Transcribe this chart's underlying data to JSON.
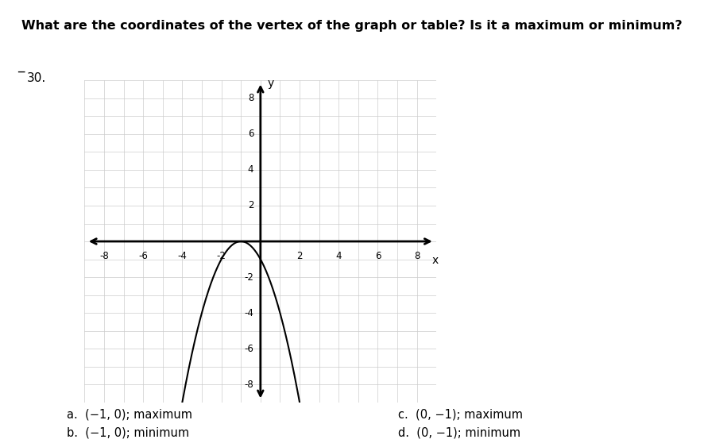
{
  "title": "What are the coordinates of the vertex of the graph or table? Is it a maximum or minimum?",
  "question_number": "30.",
  "xlim": [
    -9,
    9
  ],
  "ylim": [
    -9,
    9
  ],
  "xticks": [
    -8,
    -6,
    -4,
    -2,
    2,
    4,
    6,
    8
  ],
  "yticks": [
    -8,
    -6,
    -4,
    -2,
    2,
    4,
    6,
    8
  ],
  "vertex_x": -1,
  "vertex_y": 0,
  "parabola_a": -1,
  "curve_color": "#000000",
  "grid_color": "#cccccc",
  "axis_color": "#000000",
  "bg_color": "#ffffff",
  "options": [
    [
      "a.",
      "(−1, 0); maximum",
      "c.",
      "(0, −1); maximum"
    ],
    [
      "b.",
      "(−1, 0); minimum",
      "d.",
      "(0, −1); minimum"
    ]
  ],
  "font_size_title": 11.5,
  "font_size_options": 10.5,
  "font_size_ticks": 8.5
}
